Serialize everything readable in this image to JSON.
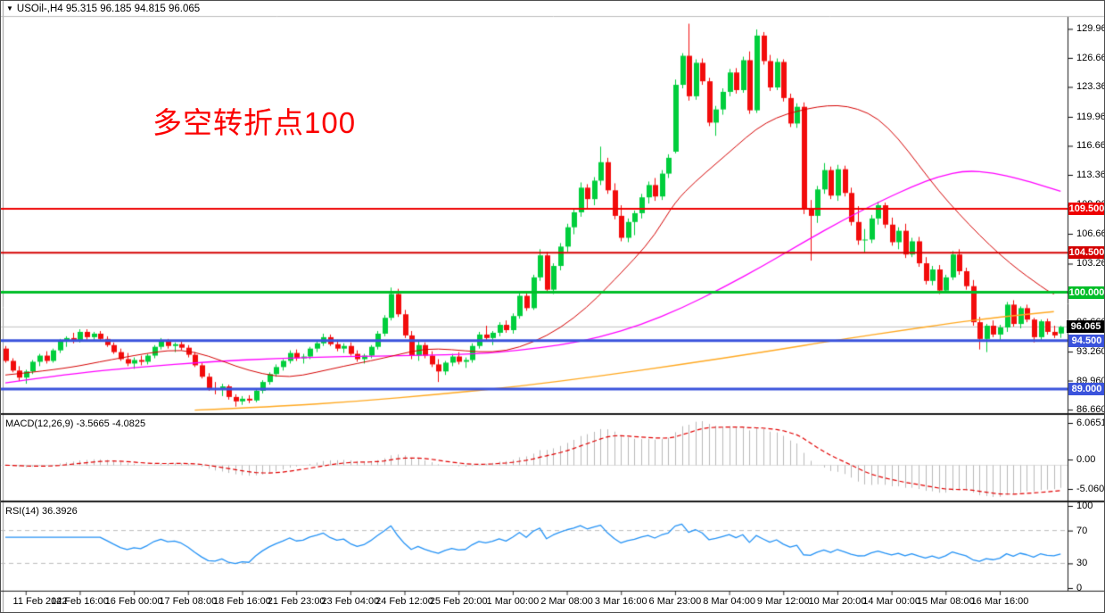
{
  "window": {
    "title": "USOil-,H4  95.315 96.185 94.815 96.065",
    "title_icon": "▼",
    "symbol": "USOil-",
    "timeframe": "H4",
    "ohlc": {
      "open": 95.315,
      "high": 96.185,
      "low": 94.815,
      "close": 96.065
    }
  },
  "annotation": {
    "text": "多空转折点100",
    "color": "#fb0000"
  },
  "indicators": {
    "macd": {
      "label": "MACD(12,26,9) -3.5665 -4.0825",
      "params": [
        12,
        26,
        9
      ],
      "main_value": -3.5665,
      "signal_value": -4.0825,
      "axis_ticks": [
        "6.0651",
        "0.00",
        "-5.0609"
      ],
      "bar_color": "#b8b8b8",
      "signal_color": "#e00000"
    },
    "rsi": {
      "label": "RSI(14) 36.3926",
      "period": 14,
      "value": 36.3926,
      "axis_ticks": [
        "100",
        "70",
        "30",
        "0"
      ],
      "levels": [
        70,
        30
      ],
      "line_color": "#2492f5"
    }
  },
  "price_axis": {
    "ticks": [
      129.96,
      126.66,
      123.36,
      119.96,
      116.66,
      113.36,
      109.96,
      106.66,
      103.26,
      99.96,
      96.66,
      93.26,
      89.96,
      86.66
    ]
  },
  "time_axis": {
    "labels": [
      "11 Feb 2022",
      "14 Feb 16:00",
      "16 Feb 00:00",
      "17 Feb 08:00",
      "18 Feb 16:00",
      "21 Feb 23:00",
      "23 Feb 04:00",
      "24 Feb 12:00",
      "25 Feb 20:00",
      "1 Mar 00:00",
      "2 Mar 08:00",
      "3 Mar 16:00",
      "6 Mar 23:00",
      "8 Mar 04:00",
      "9 Mar 12:00",
      "10 Mar 20:00",
      "14 Mar 00:00",
      "15 Mar 08:00",
      "16 Mar 16:00"
    ]
  },
  "hlines": [
    {
      "label": "109.500",
      "value": 109.5,
      "color": "#ee0000",
      "width": 2
    },
    {
      "label": "104.500",
      "value": 104.5,
      "color": "#d40000",
      "width": 2
    },
    {
      "label": "100.000",
      "value": 100.0,
      "color": "#00be28",
      "width": 3
    },
    {
      "label": "94.500",
      "value": 94.5,
      "color": "#3a53dc",
      "width": 3
    },
    {
      "label": "89.000",
      "value": 89.0,
      "color": "#3a53dc",
      "width": 3
    }
  ],
  "current_price": {
    "label": "96.065",
    "value": 96.065,
    "tag_bg": "#000000",
    "line_color": "#c0c0c0"
  },
  "chart_data": {
    "type": "candlestick",
    "title": "USOil- H4",
    "ylim": [
      86.0,
      131.5
    ],
    "bull_color": "#00ce3c",
    "bear_color": "#f20c0c",
    "candles": [
      [
        93.6,
        93.9,
        92.0,
        92.2
      ],
      [
        92.2,
        92.5,
        90.9,
        91.1
      ],
      [
        91.1,
        91.6,
        89.9,
        90.3
      ],
      [
        90.3,
        91.2,
        89.6,
        91.0
      ],
      [
        91.0,
        92.3,
        90.7,
        92.1
      ],
      [
        92.1,
        93.0,
        91.6,
        92.8
      ],
      [
        92.8,
        93.3,
        91.9,
        92.2
      ],
      [
        92.2,
        93.6,
        92.0,
        93.4
      ],
      [
        93.4,
        94.7,
        93.1,
        94.4
      ],
      [
        94.4,
        95.0,
        93.8,
        94.8
      ],
      [
        94.8,
        95.4,
        94.2,
        94.5
      ],
      [
        94.5,
        95.8,
        94.3,
        95.5
      ],
      [
        95.5,
        95.8,
        94.6,
        94.9
      ],
      [
        94.9,
        95.5,
        94.4,
        95.3
      ],
      [
        95.3,
        95.6,
        94.5,
        94.7
      ],
      [
        94.7,
        95.0,
        93.8,
        94.0
      ],
      [
        94.0,
        94.3,
        93.0,
        93.2
      ],
      [
        93.2,
        93.6,
        92.2,
        92.4
      ],
      [
        92.4,
        93.1,
        91.6,
        91.9
      ],
      [
        91.9,
        92.6,
        91.3,
        92.3
      ],
      [
        92.3,
        92.8,
        91.7,
        92.1
      ],
      [
        92.1,
        93.0,
        91.8,
        92.8
      ],
      [
        92.8,
        94.0,
        92.5,
        93.8
      ],
      [
        93.8,
        94.8,
        93.5,
        94.4
      ],
      [
        94.4,
        94.7,
        93.6,
        93.9
      ],
      [
        93.9,
        94.3,
        93.2,
        94.1
      ],
      [
        94.1,
        94.4,
        93.4,
        93.7
      ],
      [
        93.7,
        94.0,
        92.6,
        92.9
      ],
      [
        92.9,
        93.2,
        91.5,
        91.7
      ],
      [
        91.7,
        92.0,
        90.2,
        90.4
      ],
      [
        90.4,
        90.8,
        88.8,
        89.1
      ],
      [
        89.1,
        89.8,
        88.4,
        88.9
      ],
      [
        88.9,
        89.6,
        88.2,
        89.3
      ],
      [
        89.3,
        89.5,
        87.8,
        88.1
      ],
      [
        88.1,
        88.4,
        87.0,
        87.6
      ],
      [
        87.6,
        88.2,
        87.2,
        87.9
      ],
      [
        87.9,
        88.3,
        87.4,
        87.7
      ],
      [
        87.7,
        89.0,
        87.5,
        88.8
      ],
      [
        88.8,
        90.0,
        88.5,
        89.8
      ],
      [
        89.8,
        90.9,
        89.5,
        90.7
      ],
      [
        90.7,
        91.8,
        90.4,
        91.5
      ],
      [
        91.5,
        92.4,
        91.1,
        92.2
      ],
      [
        92.2,
        93.4,
        91.9,
        93.1
      ],
      [
        93.1,
        93.5,
        92.2,
        92.5
      ],
      [
        92.5,
        93.0,
        91.9,
        92.7
      ],
      [
        92.7,
        93.8,
        92.4,
        93.6
      ],
      [
        93.6,
        94.5,
        93.2,
        94.2
      ],
      [
        94.2,
        95.3,
        93.9,
        94.9
      ],
      [
        94.9,
        95.2,
        93.9,
        94.1
      ],
      [
        94.1,
        94.6,
        93.3,
        93.6
      ],
      [
        93.6,
        94.2,
        93.1,
        93.9
      ],
      [
        93.9,
        94.3,
        92.8,
        93.0
      ],
      [
        93.0,
        93.4,
        92.1,
        92.4
      ],
      [
        92.4,
        93.0,
        91.9,
        92.8
      ],
      [
        92.8,
        94.0,
        92.5,
        93.8
      ],
      [
        93.8,
        95.6,
        93.5,
        95.3
      ],
      [
        95.3,
        97.4,
        95.0,
        97.1
      ],
      [
        97.1,
        100.54,
        96.8,
        99.8
      ],
      [
        99.8,
        100.4,
        97.2,
        97.5
      ],
      [
        97.5,
        98.0,
        94.8,
        95.1
      ],
      [
        95.1,
        95.6,
        92.4,
        92.8
      ],
      [
        92.8,
        94.4,
        92.2,
        94.0
      ],
      [
        94.0,
        94.3,
        92.5,
        92.8
      ],
      [
        92.8,
        93.3,
        91.5,
        91.8
      ],
      [
        91.8,
        92.4,
        89.8,
        91.0
      ],
      [
        91.0,
        92.2,
        90.6,
        92.0
      ],
      [
        92.0,
        93.0,
        91.6,
        92.7
      ],
      [
        92.7,
        93.2,
        91.8,
        92.1
      ],
      [
        92.1,
        92.6,
        91.4,
        92.3
      ],
      [
        92.3,
        94.2,
        92.0,
        93.9
      ],
      [
        93.9,
        95.5,
        93.6,
        95.2
      ],
      [
        95.2,
        96.2,
        94.5,
        94.8
      ],
      [
        94.8,
        95.6,
        94.0,
        95.4
      ],
      [
        95.4,
        96.6,
        95.0,
        96.3
      ],
      [
        96.3,
        96.8,
        95.4,
        95.7
      ],
      [
        95.7,
        97.6,
        95.3,
        97.3
      ],
      [
        97.3,
        99.9,
        97.0,
        99.6
      ],
      [
        99.6,
        100.1,
        97.9,
        98.2
      ],
      [
        98.2,
        102.0,
        98.0,
        101.7
      ],
      [
        101.7,
        104.9,
        101.3,
        104.2
      ],
      [
        104.2,
        104.6,
        99.9,
        100.3
      ],
      [
        100.3,
        103.3,
        99.8,
        103.0
      ],
      [
        103.0,
        105.6,
        102.5,
        105.2
      ],
      [
        105.2,
        107.8,
        104.6,
        107.4
      ],
      [
        107.4,
        109.5,
        106.6,
        109.1
      ],
      [
        109.1,
        112.5,
        108.6,
        111.9
      ],
      [
        111.9,
        112.3,
        109.6,
        110.6
      ],
      [
        110.6,
        113.1,
        109.9,
        112.7
      ],
      [
        112.7,
        116.57,
        112.2,
        114.8
      ],
      [
        114.8,
        115.3,
        111.2,
        111.6
      ],
      [
        111.6,
        112.4,
        108.3,
        108.7
      ],
      [
        108.7,
        109.9,
        105.8,
        106.2
      ],
      [
        106.2,
        108.4,
        105.7,
        108.0
      ],
      [
        108.0,
        109.3,
        106.5,
        109.0
      ],
      [
        109.0,
        111.2,
        108.4,
        110.8
      ],
      [
        110.8,
        112.6,
        110.1,
        112.2
      ],
      [
        112.2,
        113.0,
        110.4,
        110.9
      ],
      [
        110.9,
        113.9,
        110.5,
        113.5
      ],
      [
        113.5,
        115.7,
        113.0,
        115.3
      ],
      [
        116.0,
        124.2,
        115.8,
        123.6
      ],
      [
        123.6,
        127.2,
        123.2,
        126.9
      ],
      [
        126.9,
        130.55,
        121.8,
        122.3
      ],
      [
        122.3,
        126.5,
        121.9,
        126.1
      ],
      [
        126.1,
        126.6,
        123.6,
        124.0
      ],
      [
        124.0,
        124.4,
        118.9,
        119.3
      ],
      [
        119.3,
        121.2,
        117.8,
        120.8
      ],
      [
        120.8,
        123.2,
        120.2,
        122.8
      ],
      [
        122.8,
        125.4,
        122.3,
        125.0
      ],
      [
        125.0,
        125.5,
        122.6,
        123.0
      ],
      [
        123.0,
        126.8,
        122.7,
        126.4
      ],
      [
        126.4,
        127.4,
        120.3,
        120.7
      ],
      [
        120.7,
        129.9,
        120.4,
        129.2
      ],
      [
        129.2,
        129.6,
        125.9,
        126.3
      ],
      [
        126.3,
        127.0,
        122.9,
        123.3
      ],
      [
        123.3,
        126.6,
        123.0,
        126.2
      ],
      [
        126.2,
        126.5,
        121.7,
        122.1
      ],
      [
        122.1,
        122.6,
        118.8,
        119.2
      ],
      [
        119.2,
        121.5,
        118.7,
        121.1
      ],
      [
        121.1,
        121.6,
        108.9,
        109.4
      ],
      [
        109.4,
        110.5,
        103.6,
        108.7
      ],
      [
        108.7,
        112.1,
        107.9,
        111.7
      ],
      [
        111.7,
        114.7,
        111.2,
        113.9
      ],
      [
        113.9,
        114.3,
        110.6,
        111.0
      ],
      [
        111.0,
        114.5,
        110.4,
        114.0
      ],
      [
        114.0,
        114.4,
        110.9,
        111.3
      ],
      [
        111.3,
        111.9,
        107.6,
        108.0
      ],
      [
        108.0,
        109.8,
        105.4,
        105.9
      ],
      [
        105.9,
        107.2,
        104.5,
        106.0
      ],
      [
        106.0,
        108.8,
        105.6,
        108.4
      ],
      [
        108.4,
        110.3,
        107.7,
        109.9
      ],
      [
        109.9,
        110.2,
        107.3,
        107.7
      ],
      [
        107.7,
        108.5,
        105.3,
        105.7
      ],
      [
        105.7,
        107.4,
        104.9,
        107.0
      ],
      [
        107.0,
        107.8,
        103.9,
        104.3
      ],
      [
        104.3,
        106.2,
        104.0,
        105.8
      ],
      [
        105.8,
        106.3,
        102.9,
        103.3
      ],
      [
        103.3,
        104.0,
        100.9,
        101.3
      ],
      [
        101.3,
        103.0,
        100.8,
        102.6
      ],
      [
        102.6,
        103.1,
        99.8,
        100.2
      ],
      [
        100.2,
        102.0,
        99.9,
        101.7
      ],
      [
        101.7,
        104.7,
        101.4,
        104.3
      ],
      [
        104.3,
        104.9,
        102.0,
        102.4
      ],
      [
        102.4,
        102.8,
        100.3,
        100.7
      ],
      [
        100.7,
        101.4,
        96.2,
        96.6
      ],
      [
        96.6,
        97.2,
        93.5,
        94.7
      ],
      [
        94.7,
        96.4,
        93.2,
        96.2
      ],
      [
        96.2,
        96.8,
        94.9,
        95.2
      ],
      [
        95.2,
        96.3,
        94.6,
        96.0
      ],
      [
        96.0,
        98.9,
        95.5,
        98.6
      ],
      [
        98.6,
        99.1,
        96.1,
        96.4
      ],
      [
        96.4,
        98.4,
        95.9,
        98.2
      ],
      [
        98.2,
        98.6,
        96.6,
        96.9
      ],
      [
        96.9,
        97.1,
        94.3,
        94.9
      ],
      [
        94.9,
        96.9,
        94.6,
        96.7
      ],
      [
        96.7,
        97.0,
        95.2,
        95.5
      ],
      [
        95.5,
        96.2,
        94.8,
        95.1
      ],
      [
        95.315,
        96.185,
        94.815,
        96.065
      ]
    ],
    "overlays": {
      "ma_red": {
        "color": "#d40000",
        "width": 1,
        "points": [
          [
            0,
            90.6
          ],
          [
            8,
            91.2
          ],
          [
            16,
            92.4
          ],
          [
            22,
            93.2
          ],
          [
            26,
            93.5
          ],
          [
            30,
            92.8
          ],
          [
            34,
            91.6
          ],
          [
            38,
            90.7
          ],
          [
            42,
            90.3
          ],
          [
            46,
            90.9
          ],
          [
            50,
            91.6
          ],
          [
            54,
            92.2
          ],
          [
            58,
            92.9
          ],
          [
            62,
            93.6
          ],
          [
            66,
            93.5
          ],
          [
            70,
            93.2
          ],
          [
            74,
            93.3
          ],
          [
            78,
            94.3
          ],
          [
            82,
            95.9
          ],
          [
            86,
            98.3
          ],
          [
            89,
            100.6
          ],
          [
            93,
            103.8
          ],
          [
            96,
            106.5
          ],
          [
            99,
            110.3
          ],
          [
            102,
            112.6
          ],
          [
            105,
            114.6
          ],
          [
            108,
            116.6
          ],
          [
            111,
            118.6
          ],
          [
            114,
            119.9
          ],
          [
            117,
            120.6
          ],
          [
            120,
            121.1
          ],
          [
            123,
            121.3
          ],
          [
            126,
            120.9
          ],
          [
            129,
            119.8
          ],
          [
            132,
            117.5
          ],
          [
            135,
            114.5
          ],
          [
            138,
            111.5
          ],
          [
            141,
            108.9
          ],
          [
            144,
            106.5
          ],
          [
            147,
            104.3
          ],
          [
            150,
            102.4
          ],
          [
            152,
            101.3
          ],
          [
            154,
            100.2
          ],
          [
            155,
            99.8
          ]
        ]
      },
      "ma_magenta": {
        "color": "#ff00ff",
        "width": 1.3,
        "points": [
          [
            0,
            89.7
          ],
          [
            10,
            90.8
          ],
          [
            20,
            91.5
          ],
          [
            30,
            92.1
          ],
          [
            40,
            92.5
          ],
          [
            50,
            92.7
          ],
          [
            60,
            92.8
          ],
          [
            70,
            93.0
          ],
          [
            76,
            93.4
          ],
          [
            82,
            94.0
          ],
          [
            88,
            94.9
          ],
          [
            94,
            96.3
          ],
          [
            100,
            98.2
          ],
          [
            106,
            100.5
          ],
          [
            112,
            103.0
          ],
          [
            118,
            105.7
          ],
          [
            124,
            108.3
          ],
          [
            130,
            110.6
          ],
          [
            134,
            112.0
          ],
          [
            138,
            113.2
          ],
          [
            142,
            113.85
          ],
          [
            146,
            113.6
          ],
          [
            150,
            112.9
          ],
          [
            153,
            112.2
          ],
          [
            156,
            111.5
          ]
        ]
      },
      "ma_orange": {
        "color": "#ffa820",
        "width": 1.4,
        "points": [
          [
            28,
            86.6
          ],
          [
            40,
            87.0
          ],
          [
            52,
            87.6
          ],
          [
            64,
            88.4
          ],
          [
            76,
            89.3
          ],
          [
            88,
            90.5
          ],
          [
            100,
            91.8
          ],
          [
            112,
            93.2
          ],
          [
            124,
            94.7
          ],
          [
            132,
            95.6
          ],
          [
            140,
            96.5
          ],
          [
            146,
            97.1
          ],
          [
            151,
            97.5
          ],
          [
            155,
            97.8
          ]
        ]
      }
    }
  }
}
